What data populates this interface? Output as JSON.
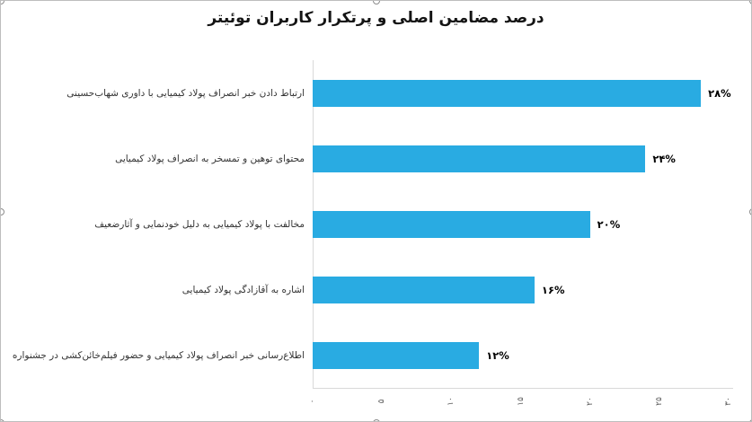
{
  "window": {
    "type": "embedded-chart-object",
    "selection_handles": 8
  },
  "chart_data": {
    "type": "bar",
    "orientation": "horizontal",
    "title": "درصد مضامین اصلی و پرتکرار کاربران توئیتر",
    "categories": [
      "ارتباط دادن خبر انصراف پولاد کیمیایی با داوری شهاب‌حسینی",
      "محتوای توهین و تمسخر به انصراف پولاد کیمیایی",
      "مخالفت با پولاد کیمیایی به دلیل خودنمایی و آثارضعیف",
      "اشاره به آقازادگی پولاد کیمیایی",
      "اطلاع‌رسانی خبر انصراف پولاد کیمیایی و حضور فیلم‌خائن‌کشی در جشنواره"
    ],
    "values": [
      28,
      24,
      20,
      16,
      12
    ],
    "value_labels": [
      "۲۸%",
      "۲۴%",
      "۲۰%",
      "۱۶%",
      "۱۲%"
    ],
    "xlabel": "",
    "ylabel": "",
    "xlim": [
      0,
      30
    ],
    "x_ticks": [
      0,
      5,
      10,
      15,
      20,
      25,
      30
    ],
    "x_tick_labels": [
      "۰",
      "۵",
      "۱۰",
      "۱۵",
      "۲۰",
      "۲۵",
      "۳۰"
    ],
    "legend": "none",
    "grid": false
  },
  "colors": {
    "bar": "#29abe2",
    "axis_line": "#d9d9d9",
    "title_text": "#141414",
    "category_text": "#333333",
    "tick_text": "#595959"
  }
}
